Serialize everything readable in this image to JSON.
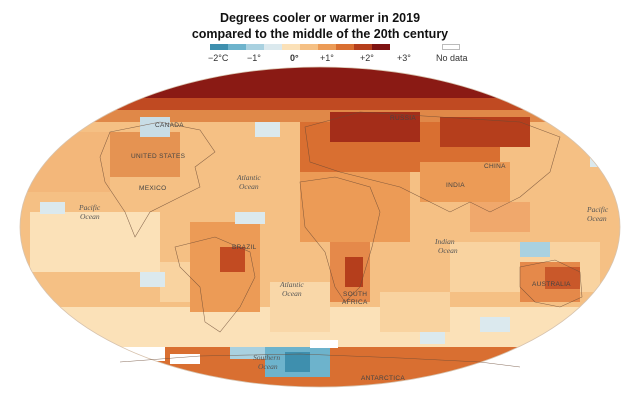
{
  "title_line1": "Degrees cooler or warmer in 2019",
  "title_line2": "compared to the middle of the 20th century",
  "legend": {
    "colors": [
      "#3e8fae",
      "#6db3cc",
      "#a9d1e0",
      "#dbe9ee",
      "#fbe1b8",
      "#f5c084",
      "#ec9b56",
      "#d96f31",
      "#b53e1c",
      "#7e1312"
    ],
    "nodata_color": "#ffffff",
    "labels": {
      "m2": "−2°C",
      "m1": "−1°",
      "zero": "0°",
      "p1": "+1°",
      "p2": "+2°",
      "p3": "+3°"
    },
    "nodata_label": "No data"
  },
  "map_labels": {
    "canada": "CANADA",
    "united_states": "UNITED STATES",
    "mexico": "MEXICO",
    "brazil": "BRAZIL",
    "russia": "RUSSIA",
    "china": "CHINA",
    "india": "INDIA",
    "australia": "AUSTRALIA",
    "south_africa_1": "SOUTH",
    "south_africa_2": "AFRICA",
    "antarctica": "ANTARCTICA"
  },
  "ocean_labels": {
    "atlantic_n_1": "Atlantic",
    "atlantic_n_2": "Ocean",
    "atlantic_s_1": "Atlantic",
    "atlantic_s_2": "Ocean",
    "pacific_w_1": "Pacific",
    "pacific_w_2": "Ocean",
    "pacific_e_1": "Pacific",
    "pacific_e_2": "Ocean",
    "indian_1": "Indian",
    "indian_2": "Ocean",
    "southern_1": "Southern",
    "southern_2": "Ocean"
  }
}
